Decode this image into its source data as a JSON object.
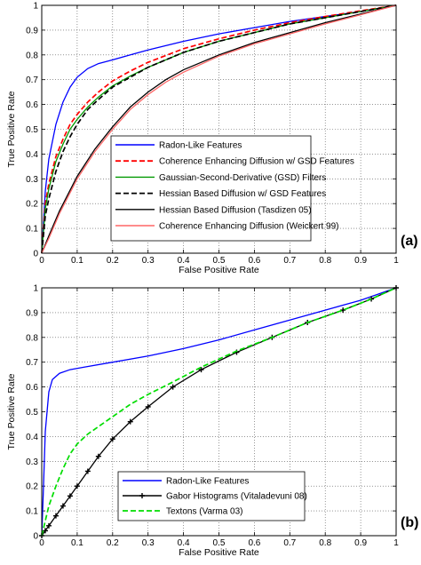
{
  "chart_data": [
    {
      "type": "line",
      "panel_label": "(a)",
      "xlabel": "False Positive Rate",
      "ylabel": "True Positive Rate",
      "xlim": [
        0,
        1
      ],
      "ylim": [
        0,
        1
      ],
      "xticks": [
        "0",
        "0.1",
        "0.2",
        "0.3",
        "0.4",
        "0.5",
        "0.6",
        "0.7",
        "0.8",
        "0.9",
        "1"
      ],
      "yticks": [
        "0",
        "0.1",
        "0.2",
        "0.3",
        "0.4",
        "0.5",
        "0.6",
        "0.7",
        "0.8",
        "0.9",
        "1"
      ],
      "grid": true,
      "legend_position": "lower-right",
      "series": [
        {
          "name": "Radon-Like Features",
          "color": "#0000ff",
          "dash": "solid",
          "x": [
            0,
            0.01,
            0.02,
            0.04,
            0.06,
            0.08,
            0.1,
            0.13,
            0.16,
            0.2,
            0.25,
            0.3,
            0.4,
            0.5,
            0.6,
            0.7,
            0.8,
            0.9,
            1.0
          ],
          "y": [
            0,
            0.25,
            0.38,
            0.52,
            0.61,
            0.67,
            0.71,
            0.745,
            0.765,
            0.78,
            0.8,
            0.82,
            0.855,
            0.885,
            0.91,
            0.935,
            0.955,
            0.975,
            1.0
          ]
        },
        {
          "name": "Coherence Enhancing Diffusion w/ GSD Features",
          "color": "#ff0000",
          "dash": "dashed",
          "x": [
            0,
            0.01,
            0.02,
            0.04,
            0.06,
            0.08,
            0.1,
            0.13,
            0.16,
            0.2,
            0.25,
            0.3,
            0.4,
            0.5,
            0.6,
            0.7,
            0.8,
            0.9,
            1.0
          ],
          "y": [
            0,
            0.2,
            0.28,
            0.39,
            0.46,
            0.52,
            0.56,
            0.61,
            0.65,
            0.695,
            0.735,
            0.77,
            0.825,
            0.865,
            0.9,
            0.93,
            0.955,
            0.978,
            1.0
          ]
        },
        {
          "name": "Gaussian-Second-Derivative (GSD) Filters",
          "color": "#009900",
          "dash": "solid",
          "x": [
            0,
            0.01,
            0.02,
            0.04,
            0.06,
            0.08,
            0.1,
            0.13,
            0.16,
            0.2,
            0.25,
            0.3,
            0.4,
            0.5,
            0.6,
            0.7,
            0.8,
            0.9,
            1.0
          ],
          "y": [
            0,
            0.18,
            0.26,
            0.37,
            0.44,
            0.5,
            0.54,
            0.59,
            0.63,
            0.675,
            0.715,
            0.75,
            0.81,
            0.855,
            0.89,
            0.925,
            0.95,
            0.975,
            1.0
          ]
        },
        {
          "name": "Hessian Based Diffusion w/ GSD Features",
          "color": "#000000",
          "dash": "dashed",
          "x": [
            0,
            0.01,
            0.02,
            0.04,
            0.06,
            0.08,
            0.1,
            0.13,
            0.16,
            0.2,
            0.25,
            0.3,
            0.4,
            0.5,
            0.6,
            0.7,
            0.8,
            0.9,
            1.0
          ],
          "y": [
            0,
            0.15,
            0.22,
            0.33,
            0.41,
            0.47,
            0.52,
            0.58,
            0.62,
            0.67,
            0.71,
            0.75,
            0.81,
            0.855,
            0.89,
            0.925,
            0.95,
            0.975,
            1.0
          ]
        },
        {
          "name": "Hessian Based Diffusion (Tasdizen 05)",
          "color": "#000000",
          "dash": "solid",
          "x": [
            0,
            0.02,
            0.05,
            0.1,
            0.15,
            0.2,
            0.25,
            0.3,
            0.35,
            0.4,
            0.5,
            0.6,
            0.7,
            0.8,
            0.9,
            1.0
          ],
          "y": [
            0,
            0.07,
            0.17,
            0.31,
            0.42,
            0.51,
            0.59,
            0.65,
            0.7,
            0.74,
            0.8,
            0.85,
            0.89,
            0.93,
            0.965,
            1.0
          ]
        },
        {
          "name": "Coherence Enhancing Diffusion (Weickert 99)",
          "color": "#ff6666",
          "dash": "solid",
          "x": [
            0,
            0.02,
            0.05,
            0.1,
            0.15,
            0.2,
            0.25,
            0.3,
            0.35,
            0.4,
            0.5,
            0.6,
            0.7,
            0.8,
            0.9,
            1.0
          ],
          "y": [
            0,
            0.06,
            0.16,
            0.3,
            0.41,
            0.5,
            0.58,
            0.64,
            0.69,
            0.73,
            0.795,
            0.845,
            0.885,
            0.925,
            0.962,
            1.0
          ]
        }
      ]
    },
    {
      "type": "line",
      "panel_label": "(b)",
      "xlabel": "False Positive Rate",
      "ylabel": "True Positive Rate",
      "xlim": [
        0,
        1
      ],
      "ylim": [
        0,
        1
      ],
      "xticks": [
        "0",
        "0.1",
        "0.2",
        "0.3",
        "0.4",
        "0.5",
        "0.6",
        "0.7",
        "0.8",
        "0.9",
        "1"
      ],
      "yticks": [
        "0",
        "0.1",
        "0.2",
        "0.3",
        "0.4",
        "0.5",
        "0.6",
        "0.7",
        "0.8",
        "0.9",
        "1"
      ],
      "grid": true,
      "legend_position": "lower-right",
      "series": [
        {
          "name": "Radon-Like Features",
          "color": "#0000ff",
          "dash": "solid",
          "x": [
            0,
            0.005,
            0.01,
            0.02,
            0.03,
            0.05,
            0.08,
            0.12,
            0.2,
            0.3,
            0.4,
            0.5,
            0.6,
            0.7,
            0.8,
            0.9,
            1.0
          ],
          "y": [
            0,
            0.2,
            0.42,
            0.58,
            0.63,
            0.655,
            0.67,
            0.68,
            0.7,
            0.725,
            0.755,
            0.79,
            0.83,
            0.87,
            0.91,
            0.95,
            1.0
          ]
        },
        {
          "name": "Gabor Histograms (Vitaladevuni 08)",
          "color": "#000000",
          "dash": "solid",
          "marker": "plus",
          "x": [
            0,
            0.01,
            0.02,
            0.04,
            0.06,
            0.08,
            0.1,
            0.13,
            0.16,
            0.2,
            0.25,
            0.3,
            0.37,
            0.45,
            0.55,
            0.65,
            0.75,
            0.85,
            0.93,
            1.0
          ],
          "y": [
            0,
            0.02,
            0.04,
            0.08,
            0.12,
            0.16,
            0.2,
            0.26,
            0.32,
            0.39,
            0.46,
            0.52,
            0.6,
            0.67,
            0.74,
            0.8,
            0.86,
            0.91,
            0.955,
            1.0
          ]
        },
        {
          "name": "Textons (Varma 03)",
          "color": "#00dd00",
          "dash": "dashed",
          "x": [
            0,
            0.01,
            0.02,
            0.04,
            0.06,
            0.08,
            0.1,
            0.13,
            0.16,
            0.2,
            0.25,
            0.3,
            0.37,
            0.45,
            0.55,
            0.65,
            0.75,
            0.85,
            0.93,
            1.0
          ],
          "y": [
            0,
            0.06,
            0.12,
            0.2,
            0.27,
            0.33,
            0.37,
            0.41,
            0.44,
            0.48,
            0.53,
            0.57,
            0.62,
            0.68,
            0.745,
            0.8,
            0.86,
            0.91,
            0.955,
            1.0
          ]
        }
      ]
    }
  ]
}
